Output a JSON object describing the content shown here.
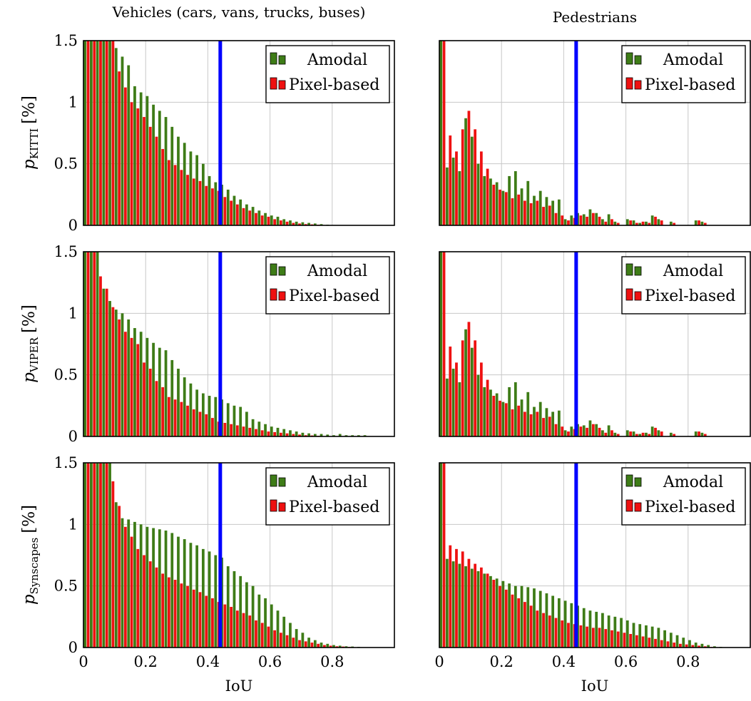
{
  "figure": {
    "column_titles": [
      "Vehicles (cars, vans, trucks, buses)",
      "Pedestrians"
    ],
    "row_ylabels": [
      {
        "var": "p",
        "sub": "KITTI",
        "unit": "[%]"
      },
      {
        "var": "p",
        "sub": "VIPER",
        "unit": "[%]"
      },
      {
        "var": "p",
        "sub": "Synscapes",
        "unit": "[%]"
      }
    ],
    "xlabel": "IoU",
    "threshold_color": "#0000ff",
    "series_colors": {
      "Amodal": "#3e7c17",
      "Pixel-based": "#ee1111"
    }
  },
  "chart_data": [
    {
      "type": "bar",
      "row": 0,
      "col": 0,
      "xlim": [
        0,
        1
      ],
      "ylim": [
        0,
        1.5
      ],
      "xticks": [
        "0",
        "0.2",
        "0.4",
        "0.6",
        "0.8"
      ],
      "yticks": [
        "0",
        "0.5",
        "1",
        "1.5"
      ],
      "threshold": 0.44,
      "grid": true,
      "legend_position": "top-right",
      "legend": [
        "Amodal",
        "Pixel-based"
      ],
      "bin_width": 0.02,
      "x": [
        0.0,
        0.02,
        0.04,
        0.06,
        0.08,
        0.1,
        0.12,
        0.14,
        0.16,
        0.18,
        0.2,
        0.22,
        0.24,
        0.26,
        0.28,
        0.3,
        0.32,
        0.34,
        0.36,
        0.38,
        0.4,
        0.42,
        0.44,
        0.46,
        0.48,
        0.5,
        0.52,
        0.54,
        0.56,
        0.58,
        0.6,
        0.62,
        0.64,
        0.66,
        0.68,
        0.7,
        0.72,
        0.74,
        0.76,
        0.78,
        0.8
      ],
      "series": [
        {
          "name": "Amodal",
          "values": [
            1.5,
            1.5,
            1.5,
            1.5,
            1.5,
            1.44,
            1.37,
            1.3,
            1.13,
            1.08,
            1.05,
            0.98,
            0.93,
            0.88,
            0.8,
            0.72,
            0.67,
            0.6,
            0.57,
            0.5,
            0.4,
            0.35,
            0.33,
            0.29,
            0.24,
            0.21,
            0.17,
            0.15,
            0.12,
            0.1,
            0.08,
            0.07,
            0.05,
            0.04,
            0.03,
            0.025,
            0.02,
            0.015,
            0.01,
            0.005,
            0.0
          ]
        },
        {
          "name": "Pixel-based",
          "values": [
            1.5,
            1.5,
            1.5,
            1.5,
            1.5,
            1.25,
            1.12,
            1.0,
            0.95,
            0.88,
            0.8,
            0.72,
            0.62,
            0.53,
            0.49,
            0.45,
            0.41,
            0.38,
            0.36,
            0.32,
            0.3,
            0.28,
            0.23,
            0.2,
            0.17,
            0.14,
            0.12,
            0.1,
            0.08,
            0.07,
            0.05,
            0.04,
            0.03,
            0.02,
            0.015,
            0.01,
            0.008,
            0.005,
            0.003,
            0.0,
            0.0
          ]
        }
      ]
    },
    {
      "type": "bar",
      "row": 0,
      "col": 1,
      "xlim": [
        0,
        1
      ],
      "ylim": [
        0,
        1.5
      ],
      "xticks": [
        "0",
        "0.2",
        "0.4",
        "0.6",
        "0.8"
      ],
      "yticks": [
        "0",
        "0.5",
        "1",
        "1.5"
      ],
      "threshold": 0.44,
      "grid": true,
      "legend_position": "top-right",
      "legend": [
        "Amodal",
        "Pixel-based"
      ],
      "bin_width": 0.02,
      "x": [
        0.0,
        0.02,
        0.04,
        0.06,
        0.08,
        0.1,
        0.12,
        0.14,
        0.16,
        0.18,
        0.2,
        0.22,
        0.24,
        0.26,
        0.28,
        0.3,
        0.32,
        0.34,
        0.36,
        0.38,
        0.4,
        0.42,
        0.44,
        0.46,
        0.48,
        0.5,
        0.52,
        0.54,
        0.56,
        0.58,
        0.6,
        0.62,
        0.64,
        0.66,
        0.68,
        0.7,
        0.72,
        0.74,
        0.76,
        0.78,
        0.8,
        0.82,
        0.84,
        0.86,
        0.88
      ],
      "series": [
        {
          "name": "Amodal",
          "values": [
            1.5,
            0.47,
            0.55,
            0.44,
            0.87,
            0.72,
            0.5,
            0.4,
            0.38,
            0.35,
            0.28,
            0.4,
            0.44,
            0.3,
            0.36,
            0.24,
            0.28,
            0.23,
            0.2,
            0.21,
            0.05,
            0.08,
            0.1,
            0.09,
            0.13,
            0.1,
            0.05,
            0.09,
            0.03,
            0.0,
            0.05,
            0.04,
            0.02,
            0.03,
            0.08,
            0.05,
            0.0,
            0.03,
            0.0,
            0.0,
            0.0,
            0.04,
            0.03,
            0.0,
            0.0
          ]
        },
        {
          "name": "Pixel-based",
          "values": [
            1.5,
            0.73,
            0.6,
            0.78,
            0.93,
            0.78,
            0.6,
            0.46,
            0.33,
            0.29,
            0.27,
            0.22,
            0.25,
            0.2,
            0.18,
            0.2,
            0.15,
            0.16,
            0.1,
            0.08,
            0.04,
            0.06,
            0.08,
            0.07,
            0.1,
            0.07,
            0.03,
            0.05,
            0.02,
            0.0,
            0.04,
            0.02,
            0.03,
            0.02,
            0.07,
            0.04,
            0.0,
            0.02,
            0.0,
            0.0,
            0.0,
            0.04,
            0.02,
            0.0,
            0.0
          ]
        }
      ]
    },
    {
      "type": "bar",
      "row": 1,
      "col": 0,
      "xlim": [
        0,
        1
      ],
      "ylim": [
        0,
        1.5
      ],
      "xticks": [
        "0",
        "0.2",
        "0.4",
        "0.6",
        "0.8"
      ],
      "yticks": [
        "0",
        "0.5",
        "1",
        "1.5"
      ],
      "threshold": 0.44,
      "grid": true,
      "legend_position": "top-right",
      "legend": [
        "Amodal",
        "Pixel-based"
      ],
      "bin_width": 0.02,
      "x": [
        0.0,
        0.02,
        0.04,
        0.06,
        0.08,
        0.1,
        0.12,
        0.14,
        0.16,
        0.18,
        0.2,
        0.22,
        0.24,
        0.26,
        0.28,
        0.3,
        0.32,
        0.34,
        0.36,
        0.38,
        0.4,
        0.42,
        0.44,
        0.46,
        0.48,
        0.5,
        0.52,
        0.54,
        0.56,
        0.58,
        0.6,
        0.62,
        0.64,
        0.66,
        0.68,
        0.7,
        0.72,
        0.74,
        0.76,
        0.78,
        0.8,
        0.82,
        0.84,
        0.86,
        0.88,
        0.9
      ],
      "series": [
        {
          "name": "Amodal",
          "values": [
            1.5,
            1.5,
            1.5,
            1.2,
            1.1,
            1.03,
            1.0,
            0.95,
            0.88,
            0.85,
            0.8,
            0.76,
            0.72,
            0.7,
            0.62,
            0.55,
            0.48,
            0.43,
            0.38,
            0.35,
            0.33,
            0.32,
            0.3,
            0.27,
            0.25,
            0.24,
            0.2,
            0.14,
            0.12,
            0.1,
            0.08,
            0.07,
            0.06,
            0.05,
            0.04,
            0.03,
            0.025,
            0.02,
            0.02,
            0.015,
            0.01,
            0.02,
            0.01,
            0.01,
            0.01,
            0.01
          ]
        },
        {
          "name": "Pixel-based",
          "values": [
            1.5,
            1.5,
            1.3,
            1.2,
            1.05,
            0.95,
            0.85,
            0.8,
            0.75,
            0.6,
            0.55,
            0.45,
            0.4,
            0.32,
            0.3,
            0.28,
            0.25,
            0.22,
            0.2,
            0.18,
            0.15,
            0.12,
            0.11,
            0.1,
            0.09,
            0.08,
            0.07,
            0.06,
            0.05,
            0.04,
            0.035,
            0.03,
            0.025,
            0.02,
            0.015,
            0.01,
            0.008,
            0.005,
            0.0,
            0.0,
            0.0,
            0.0,
            0.0,
            0.0,
            0.0,
            0.0
          ]
        }
      ]
    },
    {
      "type": "bar",
      "row": 1,
      "col": 1,
      "xlim": [
        0,
        1
      ],
      "ylim": [
        0,
        1.5
      ],
      "xticks": [
        "0",
        "0.2",
        "0.4",
        "0.6",
        "0.8"
      ],
      "yticks": [
        "0",
        "0.5",
        "1",
        "1.5"
      ],
      "threshold": 0.44,
      "grid": true,
      "legend_position": "top-right",
      "legend": [
        "Amodal",
        "Pixel-based"
      ],
      "bin_width": 0.02,
      "x": [
        0.0,
        0.02,
        0.04,
        0.06,
        0.08,
        0.1,
        0.12,
        0.14,
        0.16,
        0.18,
        0.2,
        0.22,
        0.24,
        0.26,
        0.28,
        0.3,
        0.32,
        0.34,
        0.36,
        0.38,
        0.4,
        0.42,
        0.44,
        0.46,
        0.48,
        0.5,
        0.52,
        0.54,
        0.56,
        0.58,
        0.6,
        0.62,
        0.64,
        0.66,
        0.68,
        0.7,
        0.72,
        0.74,
        0.76,
        0.78,
        0.8,
        0.82,
        0.84,
        0.86,
        0.88
      ],
      "series": [
        {
          "name": "Amodal",
          "values": [
            1.5,
            0.47,
            0.55,
            0.44,
            0.87,
            0.72,
            0.5,
            0.4,
            0.38,
            0.35,
            0.28,
            0.4,
            0.44,
            0.3,
            0.36,
            0.24,
            0.28,
            0.23,
            0.2,
            0.21,
            0.05,
            0.08,
            0.1,
            0.09,
            0.13,
            0.1,
            0.05,
            0.09,
            0.03,
            0.0,
            0.05,
            0.04,
            0.02,
            0.03,
            0.08,
            0.05,
            0.0,
            0.03,
            0.0,
            0.0,
            0.0,
            0.04,
            0.03,
            0.0,
            0.0
          ]
        },
        {
          "name": "Pixel-based",
          "values": [
            1.5,
            0.73,
            0.6,
            0.78,
            0.93,
            0.78,
            0.6,
            0.46,
            0.33,
            0.29,
            0.27,
            0.22,
            0.25,
            0.2,
            0.18,
            0.2,
            0.15,
            0.16,
            0.1,
            0.08,
            0.04,
            0.06,
            0.08,
            0.07,
            0.1,
            0.07,
            0.03,
            0.05,
            0.02,
            0.0,
            0.04,
            0.02,
            0.03,
            0.02,
            0.07,
            0.04,
            0.0,
            0.02,
            0.0,
            0.0,
            0.0,
            0.04,
            0.02,
            0.0,
            0.0
          ]
        }
      ]
    },
    {
      "type": "bar",
      "row": 2,
      "col": 0,
      "xlim": [
        0,
        1
      ],
      "ylim": [
        0,
        1.5
      ],
      "xticks": [
        "0",
        "0.2",
        "0.4",
        "0.6",
        "0.8"
      ],
      "yticks": [
        "0",
        "0.5",
        "1",
        "1.5"
      ],
      "threshold": 0.44,
      "grid": true,
      "legend_position": "top-right",
      "legend": [
        "Amodal",
        "Pixel-based"
      ],
      "bin_width": 0.02,
      "x": [
        0.0,
        0.02,
        0.04,
        0.06,
        0.08,
        0.1,
        0.12,
        0.14,
        0.16,
        0.18,
        0.2,
        0.22,
        0.24,
        0.26,
        0.28,
        0.3,
        0.32,
        0.34,
        0.36,
        0.38,
        0.4,
        0.42,
        0.44,
        0.46,
        0.48,
        0.5,
        0.52,
        0.54,
        0.56,
        0.58,
        0.6,
        0.62,
        0.64,
        0.66,
        0.68,
        0.7,
        0.72,
        0.74,
        0.76,
        0.78,
        0.8,
        0.82,
        0.84,
        0.86,
        0.88,
        0.9
      ],
      "series": [
        {
          "name": "Amodal",
          "values": [
            1.5,
            1.5,
            1.5,
            1.5,
            1.5,
            1.18,
            1.05,
            1.04,
            1.02,
            1.0,
            0.98,
            0.97,
            0.96,
            0.95,
            0.93,
            0.9,
            0.88,
            0.85,
            0.83,
            0.8,
            0.78,
            0.75,
            0.73,
            0.66,
            0.62,
            0.58,
            0.53,
            0.5,
            0.43,
            0.4,
            0.35,
            0.3,
            0.25,
            0.2,
            0.15,
            0.12,
            0.08,
            0.06,
            0.04,
            0.03,
            0.02,
            0.015,
            0.01,
            0.008,
            0.005,
            0.0
          ]
        },
        {
          "name": "Pixel-based",
          "values": [
            1.5,
            1.5,
            1.5,
            1.5,
            1.35,
            1.15,
            0.98,
            0.9,
            0.8,
            0.75,
            0.7,
            0.65,
            0.6,
            0.57,
            0.55,
            0.52,
            0.5,
            0.47,
            0.45,
            0.42,
            0.4,
            0.37,
            0.35,
            0.33,
            0.3,
            0.28,
            0.26,
            0.22,
            0.2,
            0.17,
            0.14,
            0.12,
            0.1,
            0.08,
            0.06,
            0.05,
            0.04,
            0.03,
            0.02,
            0.015,
            0.01,
            0.008,
            0.005,
            0.0,
            0.0,
            0.0
          ]
        }
      ]
    },
    {
      "type": "bar",
      "row": 2,
      "col": 1,
      "xlim": [
        0,
        1
      ],
      "ylim": [
        0,
        1.5
      ],
      "xticks": [
        "0",
        "0.2",
        "0.4",
        "0.6",
        "0.8"
      ],
      "yticks": [
        "0",
        "0.5",
        "1",
        "1.5"
      ],
      "threshold": 0.44,
      "grid": true,
      "legend_position": "top-right",
      "legend": [
        "Amodal",
        "Pixel-based"
      ],
      "bin_width": 0.02,
      "x": [
        0.0,
        0.02,
        0.04,
        0.06,
        0.08,
        0.1,
        0.12,
        0.14,
        0.16,
        0.18,
        0.2,
        0.22,
        0.24,
        0.26,
        0.28,
        0.3,
        0.32,
        0.34,
        0.36,
        0.38,
        0.4,
        0.42,
        0.44,
        0.46,
        0.48,
        0.5,
        0.52,
        0.54,
        0.56,
        0.58,
        0.6,
        0.62,
        0.64,
        0.66,
        0.68,
        0.7,
        0.72,
        0.74,
        0.76,
        0.78,
        0.8,
        0.82,
        0.84,
        0.86,
        0.88,
        0.9
      ],
      "series": [
        {
          "name": "Amodal",
          "values": [
            1.5,
            0.72,
            0.7,
            0.68,
            0.66,
            0.64,
            0.62,
            0.6,
            0.58,
            0.56,
            0.54,
            0.52,
            0.5,
            0.5,
            0.49,
            0.48,
            0.46,
            0.44,
            0.42,
            0.4,
            0.38,
            0.36,
            0.34,
            0.32,
            0.3,
            0.29,
            0.28,
            0.26,
            0.25,
            0.24,
            0.22,
            0.2,
            0.19,
            0.18,
            0.17,
            0.16,
            0.14,
            0.12,
            0.1,
            0.08,
            0.06,
            0.04,
            0.03,
            0.02,
            0.01,
            0.005
          ]
        },
        {
          "name": "Pixel-based",
          "values": [
            1.5,
            0.83,
            0.8,
            0.78,
            0.72,
            0.68,
            0.65,
            0.6,
            0.55,
            0.5,
            0.47,
            0.43,
            0.4,
            0.37,
            0.34,
            0.3,
            0.28,
            0.26,
            0.24,
            0.22,
            0.2,
            0.19,
            0.18,
            0.17,
            0.16,
            0.16,
            0.15,
            0.14,
            0.13,
            0.12,
            0.11,
            0.1,
            0.09,
            0.08,
            0.07,
            0.06,
            0.05,
            0.04,
            0.03,
            0.025,
            0.02,
            0.015,
            0.01,
            0.005,
            0.0,
            0.0
          ]
        }
      ]
    }
  ]
}
